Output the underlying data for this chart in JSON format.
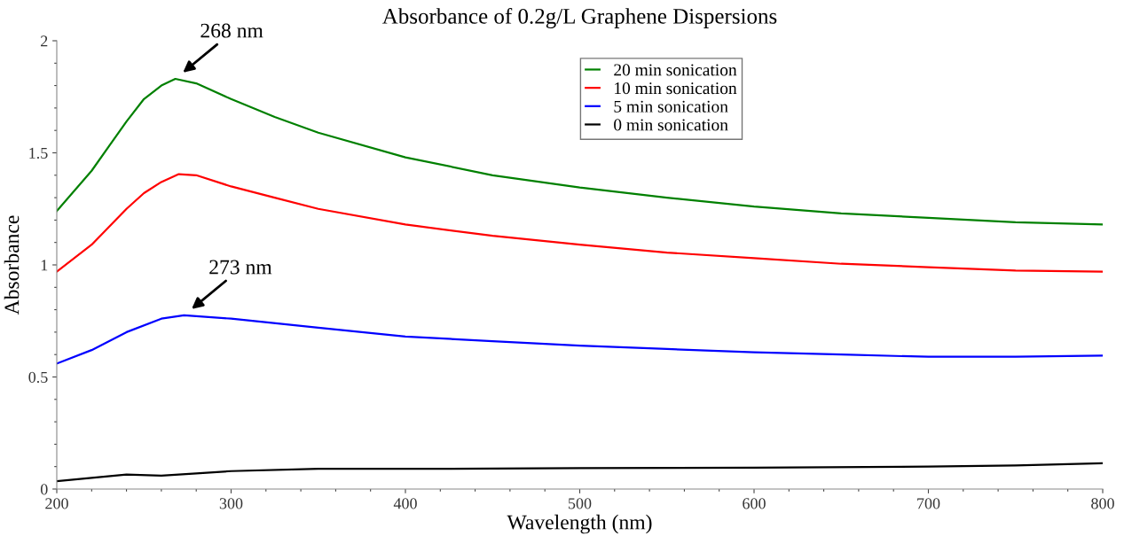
{
  "chart_data": {
    "type": "line",
    "title": "Absorbance of 0.2g/L Graphene Dispersions",
    "xlabel": "Wavelength (nm)",
    "ylabel": "Absorbance",
    "xlim": [
      200,
      800
    ],
    "xticks": [
      200,
      300,
      400,
      500,
      600,
      700,
      800
    ],
    "ylim": [
      0,
      2
    ],
    "yticks": [
      0,
      0.5,
      1,
      1.5,
      2
    ],
    "grid": false,
    "legend": "top",
    "marker": "none",
    "line_style": "solid",
    "series": [
      {
        "name": "20 min sonication",
        "color": "#008000",
        "x": [
          200,
          220,
          230,
          240,
          250,
          260,
          268,
          280,
          300,
          325,
          350,
          400,
          450,
          500,
          550,
          600,
          650,
          700,
          750,
          800
        ],
        "values": [
          1.24,
          1.42,
          1.53,
          1.64,
          1.74,
          1.8,
          1.83,
          1.81,
          1.74,
          1.66,
          1.59,
          1.48,
          1.4,
          1.345,
          1.3,
          1.26,
          1.23,
          1.21,
          1.19,
          1.18
        ]
      },
      {
        "name": "10 min sonication",
        "color": "#ff0000",
        "x": [
          200,
          220,
          230,
          240,
          250,
          260,
          270,
          280,
          300,
          325,
          350,
          400,
          450,
          500,
          550,
          600,
          650,
          700,
          750,
          800
        ],
        "values": [
          0.97,
          1.09,
          1.17,
          1.25,
          1.32,
          1.37,
          1.405,
          1.4,
          1.35,
          1.3,
          1.25,
          1.18,
          1.13,
          1.09,
          1.055,
          1.03,
          1.005,
          0.99,
          0.975,
          0.97
        ]
      },
      {
        "name": "5 min sonication",
        "color": "#0000ff",
        "x": [
          200,
          220,
          240,
          260,
          273,
          300,
          350,
          400,
          450,
          500,
          550,
          600,
          650,
          700,
          750,
          800
        ],
        "values": [
          0.56,
          0.62,
          0.7,
          0.76,
          0.775,
          0.76,
          0.72,
          0.68,
          0.66,
          0.64,
          0.625,
          0.61,
          0.6,
          0.59,
          0.59,
          0.595
        ]
      },
      {
        "name": "0 min sonication",
        "color": "#000000",
        "x": [
          200,
          220,
          240,
          260,
          280,
          300,
          350,
          400,
          500,
          600,
          700,
          750,
          800
        ],
        "values": [
          0.035,
          0.05,
          0.065,
          0.06,
          0.07,
          0.08,
          0.09,
          0.09,
          0.093,
          0.095,
          0.1,
          0.105,
          0.115
        ]
      }
    ],
    "annotations": [
      {
        "text": "268 nm",
        "x": 268,
        "y": 1.83
      },
      {
        "text": "273 nm",
        "x": 273,
        "y": 0.775
      }
    ]
  }
}
